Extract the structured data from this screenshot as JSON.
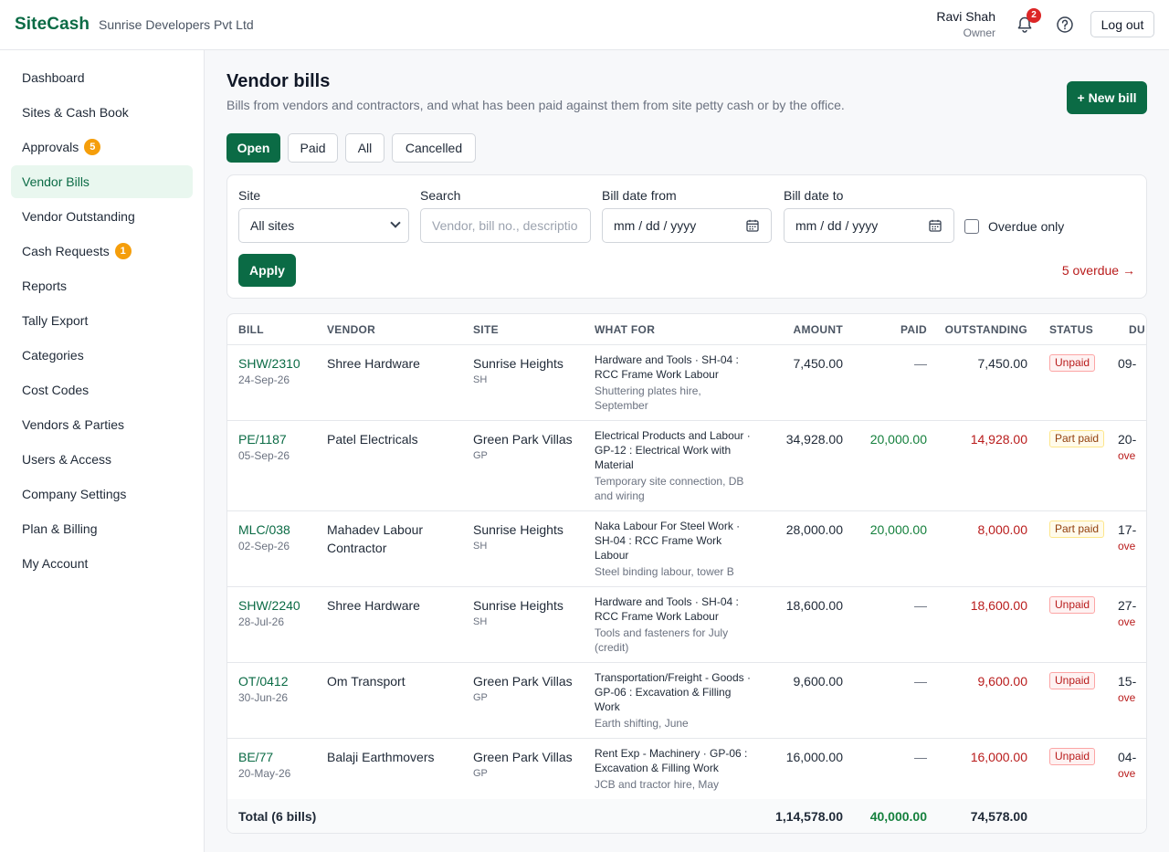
{
  "header": {
    "brand": "SiteCash",
    "company": "Sunrise Developers Pvt Ltd",
    "user_name": "Ravi Shah",
    "user_role": "Owner",
    "notifications": "2",
    "logout": "Log out"
  },
  "sidebar": {
    "items": [
      {
        "label": "Dashboard"
      },
      {
        "label": "Sites & Cash Book"
      },
      {
        "label": "Approvals",
        "badge": "5"
      },
      {
        "label": "Vendor Bills"
      },
      {
        "label": "Vendor Outstanding"
      },
      {
        "label": "Cash Requests",
        "badge": "1"
      },
      {
        "label": "Reports"
      },
      {
        "label": "Tally Export"
      },
      {
        "label": "Categories"
      },
      {
        "label": "Cost Codes"
      },
      {
        "label": "Vendors & Parties"
      },
      {
        "label": "Users & Access"
      },
      {
        "label": "Company Settings"
      },
      {
        "label": "Plan & Billing"
      },
      {
        "label": "My Account"
      }
    ],
    "active": "Vendor Bills"
  },
  "page": {
    "title": "Vendor bills",
    "subtitle": "Bills from vendors and contractors, and what has been paid against them from site petty cash or by the office.",
    "new_bill": "+ New bill"
  },
  "tabs": [
    {
      "label": "Open"
    },
    {
      "label": "Paid"
    },
    {
      "label": "All"
    },
    {
      "label": "Cancelled"
    }
  ],
  "active_tab": "Open",
  "filters": {
    "site_label": "Site",
    "site_value": "All sites",
    "search_label": "Search",
    "search_placeholder": "Vendor, bill no., descriptio",
    "from_label": "Bill date from",
    "from_value": "mm / dd / yyyy",
    "to_label": "Bill date to",
    "to_value": "mm / dd / yyyy",
    "overdue_only": "Overdue only",
    "apply": "Apply",
    "overdue_link": "5 overdue →"
  },
  "table": {
    "columns": [
      "BILL",
      "VENDOR",
      "SITE",
      "WHAT FOR",
      "AMOUNT",
      "PAID",
      "OUTSTANDING",
      "STATUS",
      "DU"
    ],
    "rows": [
      {
        "bill": "SHW/2310",
        "date": "24-Sep-26",
        "vendor": "Shree Hardware",
        "site": "Sunrise Heights",
        "site_code": "SH",
        "what": "Hardware and Tools · SH-04 : RCC Frame Work Labour",
        "what_desc": "Shuttering plates hire, September",
        "amount": "7,450.00",
        "paid": "—",
        "outstanding": "7,450.00",
        "status": "Unpaid",
        "due": "09-",
        "due_note": ""
      },
      {
        "bill": "PE/1187",
        "date": "05-Sep-26",
        "vendor": "Patel Electricals",
        "site": "Green Park Villas",
        "site_code": "GP",
        "what": "Electrical Products and Labour · GP-12 : Electrical Work with Material",
        "what_desc": "Temporary site connection, DB and wiring",
        "amount": "34,928.00",
        "paid": "20,000.00",
        "outstanding": "14,928.00",
        "status": "Part paid",
        "due": "20-",
        "due_note": "ove"
      },
      {
        "bill": "MLC/038",
        "date": "02-Sep-26",
        "vendor": "Mahadev Labour Contractor",
        "site": "Sunrise Heights",
        "site_code": "SH",
        "what": "Naka Labour For Steel Work · SH-04 : RCC Frame Work Labour",
        "what_desc": "Steel binding labour, tower B",
        "amount": "28,000.00",
        "paid": "20,000.00",
        "outstanding": "8,000.00",
        "status": "Part paid",
        "due": "17-",
        "due_note": "ove"
      },
      {
        "bill": "SHW/2240",
        "date": "28-Jul-26",
        "vendor": "Shree Hardware",
        "site": "Sunrise Heights",
        "site_code": "SH",
        "what": "Hardware and Tools · SH-04 : RCC Frame Work Labour",
        "what_desc": "Tools and fasteners for July (credit)",
        "amount": "18,600.00",
        "paid": "—",
        "outstanding": "18,600.00",
        "status": "Unpaid",
        "due": "27-",
        "due_note": "ove"
      },
      {
        "bill": "OT/0412",
        "date": "30-Jun-26",
        "vendor": "Om Transport",
        "site": "Green Park Villas",
        "site_code": "GP",
        "what": "Transportation/Freight - Goods · GP-06 : Excavation & Filling Work",
        "what_desc": "Earth shifting, June",
        "amount": "9,600.00",
        "paid": "—",
        "outstanding": "9,600.00",
        "status": "Unpaid",
        "due": "15-",
        "due_note": "ove"
      },
      {
        "bill": "BE/77",
        "date": "20-May-26",
        "vendor": "Balaji Earthmovers",
        "site": "Green Park Villas",
        "site_code": "GP",
        "what": "Rent Exp - Machinery · GP-06 : Excavation & Filling Work",
        "what_desc": "JCB and tractor hire, May",
        "amount": "16,000.00",
        "paid": "—",
        "outstanding": "16,000.00",
        "status": "Unpaid",
        "due": "04-",
        "due_note": "ove"
      }
    ],
    "total": {
      "label": "Total (6 bills)",
      "amount": "1,14,578.00",
      "paid": "40,000.00",
      "outstanding": "74,578.00"
    }
  },
  "colors": {
    "brand": "#0b6b45",
    "danger": "#b91c1c",
    "paid": "#15803d",
    "badge": "#f59e0b"
  }
}
